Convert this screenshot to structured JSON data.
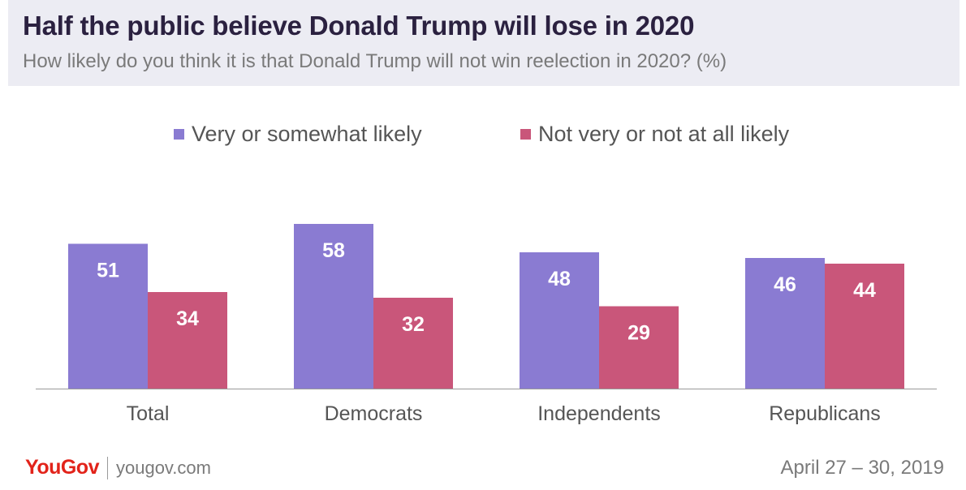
{
  "header": {
    "title": "Half the public believe Donald Trump will lose in 2020",
    "subtitle": "How likely do you think it is that Donald Trump will not win reelection in 2020? (%)"
  },
  "footer": {
    "logo_text": "YouGov",
    "url": "yougov.com",
    "date": "April 27 – 30, 2019"
  },
  "colors": {
    "header_bg": "#ececf3",
    "title": "#2b2140",
    "series_1": "#8a7bd2",
    "series_2": "#c9567a",
    "brand": "#e2231a"
  },
  "chart_data": {
    "type": "bar",
    "title": "Half the public believe Donald Trump will lose in 2020",
    "subtitle": "How likely do you think it is that Donald Trump will not win reelection in 2020? (%)",
    "categories": [
      "Total",
      "Democrats",
      "Independents",
      "Republicans"
    ],
    "series": [
      {
        "name": "Very or somewhat likely",
        "color": "#8a7bd2",
        "values": [
          51,
          58,
          48,
          46
        ]
      },
      {
        "name": "Not very or not at all likely",
        "color": "#c9567a",
        "values": [
          34,
          32,
          29,
          44
        ]
      }
    ],
    "ylim": [
      0,
      70
    ],
    "grid": false,
    "legend": "top-center",
    "data_labels": true
  }
}
